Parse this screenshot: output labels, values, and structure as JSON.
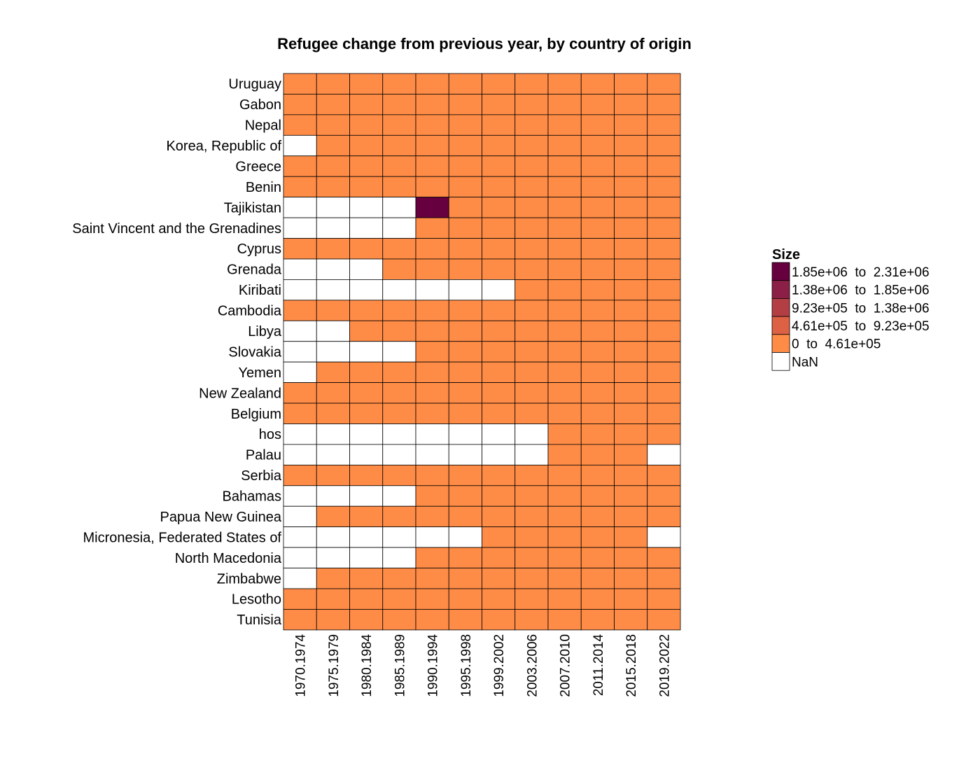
{
  "chart_data": {
    "type": "heatmap",
    "title": "Refugee change from previous year, by country of origin",
    "xlabel": "",
    "ylabel": "",
    "x_categories": [
      "1970.1974",
      "1975.1979",
      "1980.1984",
      "1985.1989",
      "1990.1994",
      "1995.1998",
      "1999.2002",
      "2003.2006",
      "2007.2010",
      "2011.2014",
      "2015.2018",
      "2019.2022"
    ],
    "y_categories": [
      "Uruguay",
      "Gabon",
      "Nepal",
      "Korea, Republic of",
      "Greece",
      "Benin",
      "Tajikistan",
      "Saint Vincent and the Grenadines",
      "Cyprus",
      "Grenada",
      "Kiribati",
      "Cambodia",
      "Libya",
      "Slovakia",
      "Yemen",
      "New Zealand",
      "Belgium",
      "hos",
      "Palau",
      "Serbia",
      "Bahamas",
      "Papua New Guinea",
      "Micronesia, Federated States of",
      "North Macedonia",
      "Zimbabwe",
      "Lesotho",
      "Tunisia"
    ],
    "value_bins": [
      {
        "label": "1.85e+06  to  2.31e+06",
        "color": "#67003f"
      },
      {
        "label": "1.38e+06  to  1.85e+06",
        "color": "#8b1f45"
      },
      {
        "label": "9.23e+05  to  1.38e+06",
        "color": "#b33f45"
      },
      {
        "label": "4.61e+05  to  9.23e+05",
        "color": "#dd6144"
      },
      {
        "label": "0  to  4.61e+05",
        "color": "#ff8c46"
      },
      {
        "label": "NaN",
        "color": "#ffffff"
      }
    ],
    "legend": {
      "title": "Size",
      "position": "right"
    },
    "grid": false,
    "cells": [
      [
        4,
        4,
        4,
        4,
        4,
        4,
        4,
        4,
        4,
        4,
        4,
        4
      ],
      [
        4,
        4,
        4,
        4,
        4,
        4,
        4,
        4,
        4,
        4,
        4,
        4
      ],
      [
        4,
        4,
        4,
        4,
        4,
        4,
        4,
        4,
        4,
        4,
        4,
        4
      ],
      [
        5,
        4,
        4,
        4,
        4,
        4,
        4,
        4,
        4,
        4,
        4,
        4
      ],
      [
        4,
        4,
        4,
        4,
        4,
        4,
        4,
        4,
        4,
        4,
        4,
        4
      ],
      [
        4,
        4,
        4,
        4,
        4,
        4,
        4,
        4,
        4,
        4,
        4,
        4
      ],
      [
        5,
        5,
        5,
        5,
        0,
        4,
        4,
        4,
        4,
        4,
        4,
        4
      ],
      [
        5,
        5,
        5,
        5,
        4,
        4,
        4,
        4,
        4,
        4,
        4,
        4
      ],
      [
        4,
        4,
        4,
        4,
        4,
        4,
        4,
        4,
        4,
        4,
        4,
        4
      ],
      [
        5,
        5,
        5,
        4,
        4,
        4,
        4,
        4,
        4,
        4,
        4,
        4
      ],
      [
        5,
        5,
        5,
        5,
        5,
        5,
        5,
        4,
        4,
        4,
        4,
        4
      ],
      [
        4,
        4,
        4,
        4,
        4,
        4,
        4,
        4,
        4,
        4,
        4,
        4
      ],
      [
        5,
        5,
        4,
        4,
        4,
        4,
        4,
        4,
        4,
        4,
        4,
        4
      ],
      [
        5,
        5,
        5,
        5,
        4,
        4,
        4,
        4,
        4,
        4,
        4,
        4
      ],
      [
        5,
        4,
        4,
        4,
        4,
        4,
        4,
        4,
        4,
        4,
        4,
        4
      ],
      [
        4,
        4,
        4,
        4,
        4,
        4,
        4,
        4,
        4,
        4,
        4,
        4
      ],
      [
        4,
        4,
        4,
        4,
        4,
        4,
        4,
        4,
        4,
        4,
        4,
        4
      ],
      [
        5,
        5,
        5,
        5,
        5,
        5,
        5,
        5,
        4,
        4,
        4,
        4
      ],
      [
        5,
        5,
        5,
        5,
        5,
        5,
        5,
        5,
        4,
        4,
        4,
        5
      ],
      [
        4,
        4,
        4,
        4,
        4,
        4,
        4,
        4,
        4,
        4,
        4,
        4
      ],
      [
        5,
        5,
        5,
        5,
        4,
        4,
        4,
        4,
        4,
        4,
        4,
        4
      ],
      [
        5,
        4,
        4,
        4,
        4,
        4,
        4,
        4,
        4,
        4,
        4,
        4
      ],
      [
        5,
        5,
        5,
        5,
        5,
        5,
        4,
        4,
        4,
        4,
        4,
        5
      ],
      [
        5,
        5,
        5,
        5,
        4,
        4,
        4,
        4,
        4,
        4,
        4,
        4
      ],
      [
        5,
        4,
        4,
        4,
        4,
        4,
        4,
        4,
        4,
        4,
        4,
        4
      ],
      [
        4,
        4,
        4,
        4,
        4,
        4,
        4,
        4,
        4,
        4,
        4,
        4
      ],
      [
        4,
        4,
        4,
        4,
        4,
        4,
        4,
        4,
        4,
        4,
        4,
        4
      ]
    ]
  }
}
